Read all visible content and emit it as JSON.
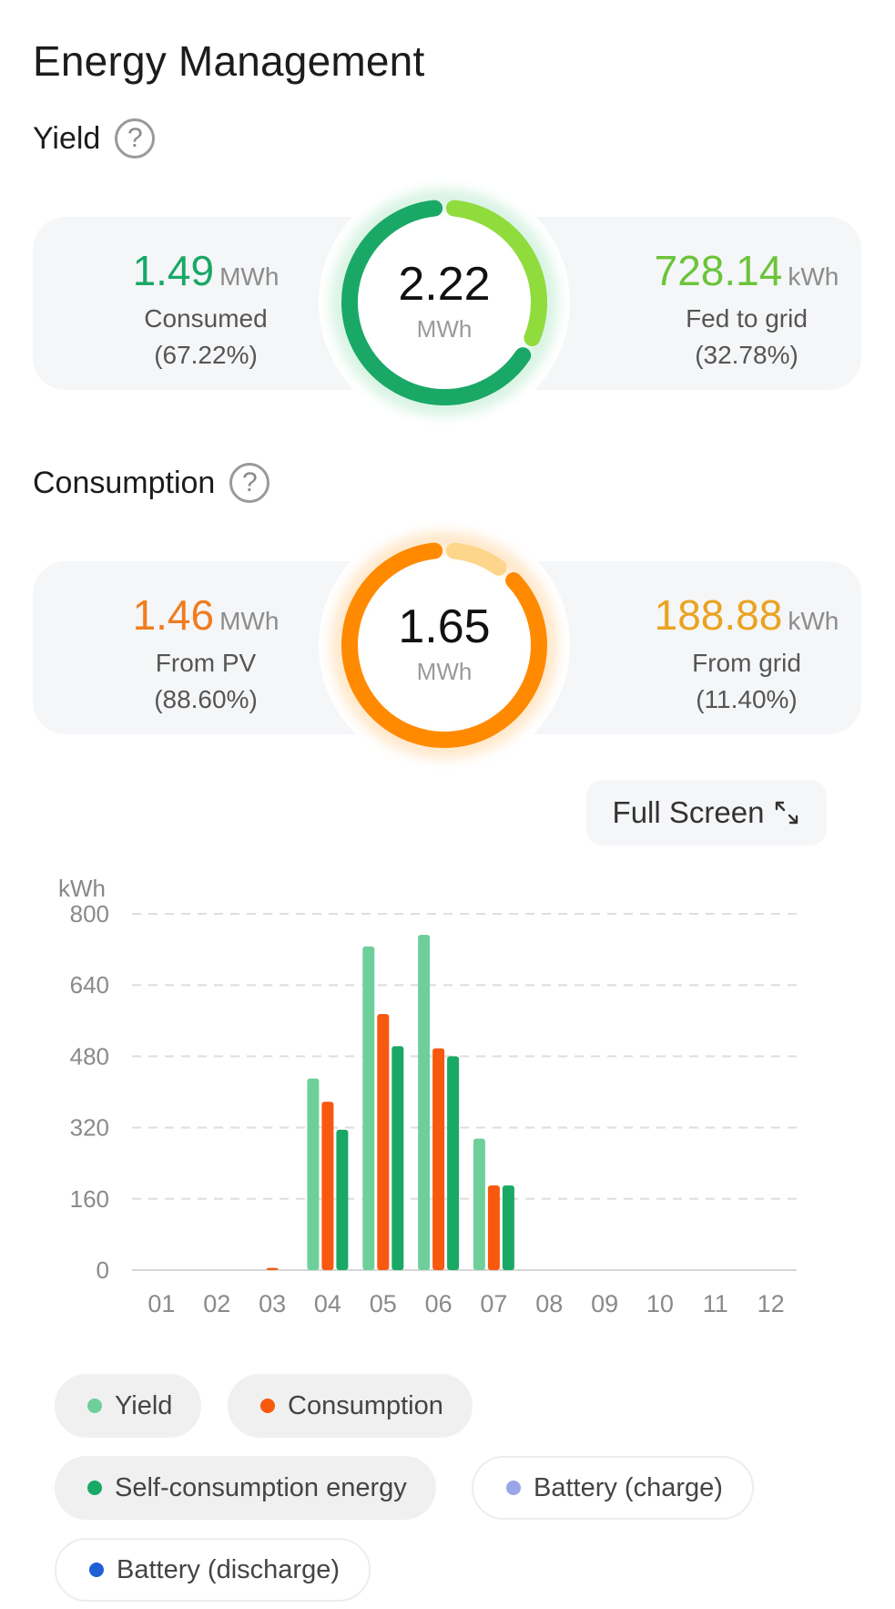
{
  "page": {
    "title": "Energy Management"
  },
  "yield": {
    "title": "Yield",
    "total": {
      "value": "2.22",
      "unit": "MWh"
    },
    "left": {
      "value": "1.49",
      "unit": "MWh",
      "label": "Consumed",
      "percent": "(67.22%)"
    },
    "right": {
      "value": "728.14",
      "unit": "kWh",
      "label": "Fed to grid",
      "percent": "(32.78%)"
    },
    "share_left": 0.6722,
    "colors": {
      "left": "#1aa866",
      "right": "#8fdc3c"
    }
  },
  "consumption": {
    "title": "Consumption",
    "total": {
      "value": "1.65",
      "unit": "MWh"
    },
    "left": {
      "value": "1.46",
      "unit": "MWh",
      "label": "From PV",
      "percent": "(88.60%)"
    },
    "right": {
      "value": "188.88",
      "unit": "kWh",
      "label": "From grid",
      "percent": "(11.40%)"
    },
    "share_left": 0.886,
    "colors": {
      "left": "#ff8a00",
      "right": "#fdd68c",
      "left_text": "#ef7d1f",
      "right_text": "#eaa320"
    }
  },
  "fullscreen": {
    "label": "Full Screen",
    "icon": "expand-icon"
  },
  "chart_data": {
    "type": "bar",
    "unit_label": "kWh",
    "categories": [
      "01",
      "02",
      "03",
      "04",
      "05",
      "06",
      "07",
      "08",
      "09",
      "10",
      "11",
      "12"
    ],
    "y_ticks": [
      0,
      160,
      320,
      480,
      640,
      800
    ],
    "ylim": [
      0,
      800
    ],
    "grid": true,
    "series": [
      {
        "name": "Yield",
        "color": "#6fcf9b",
        "values": [
          0,
          0,
          0,
          430,
          727,
          753,
          295,
          0,
          0,
          0,
          0,
          0
        ]
      },
      {
        "name": "Consumption",
        "color": "#f7590f",
        "values": [
          0,
          0,
          5,
          378,
          575,
          498,
          190,
          0,
          0,
          0,
          0,
          0
        ]
      },
      {
        "name": "Self-consumption energy",
        "color": "#1aa866",
        "values": [
          0,
          0,
          0,
          315,
          503,
          480,
          190,
          0,
          0,
          0,
          0,
          0
        ]
      }
    ]
  },
  "legend": [
    {
      "label": "Yield",
      "color": "#6fcf9b",
      "active": true
    },
    {
      "label": "Consumption",
      "color": "#f7590f",
      "active": true
    },
    {
      "label": "Self-consumption energy",
      "color": "#1aa866",
      "active": true
    },
    {
      "label": "Battery (charge)",
      "color": "#9aa6e8",
      "active": false
    },
    {
      "label": "Battery (discharge)",
      "color": "#1f5fd6",
      "active": false
    }
  ]
}
